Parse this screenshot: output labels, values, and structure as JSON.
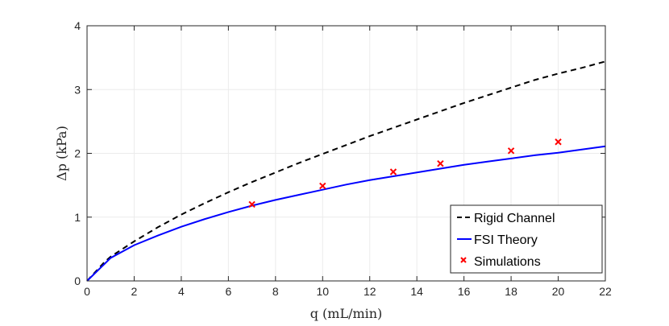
{
  "chart_data": {
    "type": "line",
    "title": "",
    "xlabel": "q (mL/min)",
    "ylabel": "Δp (kPa)",
    "xlim": [
      0,
      22
    ],
    "ylim": [
      0,
      4
    ],
    "xticks": [
      0,
      2,
      4,
      6,
      8,
      10,
      12,
      14,
      16,
      18,
      20,
      22
    ],
    "yticks": [
      0,
      1,
      2,
      3,
      4
    ],
    "grid": true,
    "legend_position": "bottom-right",
    "series": [
      {
        "name": "Rigid Channel",
        "style": "dashed",
        "color": "#000000",
        "x": [
          0,
          0.25,
          0.5,
          0.75,
          1,
          2,
          3,
          4,
          5,
          6,
          7,
          8,
          9,
          10,
          11,
          12,
          13,
          14,
          15,
          16,
          17,
          18,
          19,
          20,
          21,
          22
        ],
        "y": [
          0,
          0.1,
          0.2,
          0.3,
          0.38,
          0.62,
          0.84,
          1.04,
          1.22,
          1.39,
          1.55,
          1.7,
          1.85,
          1.99,
          2.13,
          2.27,
          2.4,
          2.53,
          2.66,
          2.79,
          2.91,
          3.03,
          3.15,
          3.25,
          3.34,
          3.44
        ]
      },
      {
        "name": "FSI Theory",
        "style": "solid",
        "color": "#0000ff",
        "x": [
          0,
          0.25,
          0.5,
          0.75,
          1,
          2,
          3,
          4,
          5,
          6,
          7,
          8,
          9,
          10,
          11,
          12,
          13,
          14,
          15,
          16,
          17,
          18,
          19,
          20,
          21,
          22
        ],
        "y": [
          0,
          0.09,
          0.18,
          0.27,
          0.36,
          0.56,
          0.71,
          0.85,
          0.97,
          1.08,
          1.18,
          1.27,
          1.35,
          1.43,
          1.51,
          1.58,
          1.64,
          1.7,
          1.76,
          1.82,
          1.87,
          1.92,
          1.97,
          2.01,
          2.06,
          2.11
        ]
      },
      {
        "name": "Simulations",
        "style": "markers",
        "marker": "x",
        "color": "#ff0000",
        "x": [
          7,
          10,
          13,
          15,
          18,
          20
        ],
        "y": [
          1.2,
          1.49,
          1.71,
          1.84,
          2.04,
          2.18
        ]
      }
    ]
  }
}
